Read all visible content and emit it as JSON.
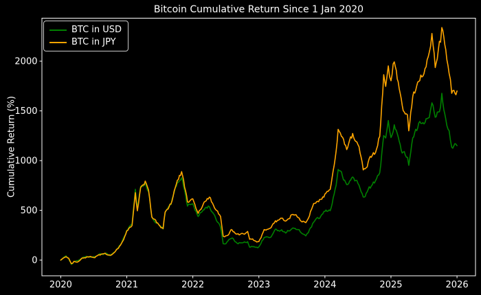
{
  "title": "Bitcoin Cumulative Return Since 1 Jan 2020",
  "colors": {
    "background": "#000000",
    "text": "#ffffff",
    "spine": "#ffffff",
    "usd_line": "#008000",
    "jpy_line": "#ffa500"
  },
  "legend": {
    "items": [
      {
        "label": "BTC in USD",
        "color": "#008000"
      },
      {
        "label": "BTC in JPY",
        "color": "#ffa500"
      }
    ]
  },
  "chart_data": {
    "type": "line",
    "title": "Bitcoin Cumulative Return Since 1 Jan 2020",
    "xlabel": "",
    "ylabel": "Cumulative Return (%)",
    "grid": false,
    "legend_position": "upper left",
    "x_unit": "decimal_year",
    "xlim": [
      2019.715,
      2026.28
    ],
    "ylim": [
      -158,
      2432
    ],
    "xticks": [
      2020,
      2021,
      2022,
      2023,
      2024,
      2025,
      2026
    ],
    "xticklabels": [
      "2020",
      "2021",
      "2022",
      "2023",
      "2024",
      "2025",
      "2026"
    ],
    "yticks": [
      0,
      500,
      1000,
      1500,
      2000
    ],
    "yticklabels": [
      "0",
      "500",
      "1000",
      "1500",
      "2000"
    ],
    "x": [
      2020.0,
      2020.04,
      2020.08,
      2020.12,
      2020.16,
      2020.2,
      2020.25,
      2020.33,
      2020.42,
      2020.5,
      2020.58,
      2020.67,
      2020.75,
      2020.83,
      2020.92,
      2021.0,
      2021.08,
      2021.13,
      2021.16,
      2021.21,
      2021.28,
      2021.33,
      2021.38,
      2021.42,
      2021.5,
      2021.55,
      2021.58,
      2021.67,
      2021.75,
      2021.83,
      2021.92,
      2022.0,
      2022.08,
      2022.17,
      2022.25,
      2022.33,
      2022.42,
      2022.46,
      2022.5,
      2022.58,
      2022.67,
      2022.75,
      2022.83,
      2022.86,
      2022.92,
      2023.0,
      2023.08,
      2023.17,
      2023.25,
      2023.33,
      2023.42,
      2023.5,
      2023.58,
      2023.67,
      2023.71,
      2023.75,
      2023.83,
      2023.92,
      2024.0,
      2024.08,
      2024.17,
      2024.2,
      2024.25,
      2024.33,
      2024.42,
      2024.5,
      2024.58,
      2024.67,
      2024.75,
      2024.83,
      2024.89,
      2024.92,
      2024.96,
      2025.0,
      2025.05,
      2025.08,
      2025.17,
      2025.25,
      2025.27,
      2025.33,
      2025.42,
      2025.5,
      2025.58,
      2025.62,
      2025.67,
      2025.75,
      2025.77,
      2025.83,
      2025.88,
      2025.92,
      2026.0
    ],
    "series": [
      {
        "name": "BTC in USD",
        "color": "#008000",
        "values": [
          0,
          25,
          33,
          20,
          -42,
          -15,
          -8,
          22,
          32,
          26,
          57,
          63,
          50,
          92,
          170,
          300,
          360,
          695,
          520,
          715,
          783,
          690,
          420,
          395,
          340,
          314,
          470,
          565,
          748,
          845,
          553,
          563,
          435,
          517,
          543,
          435,
          342,
          170,
          168,
          224,
          179,
          170,
          185,
          121,
          139,
          131,
          229,
          227,
          296,
          306,
          278,
          324,
          306,
          261,
          250,
          275,
          381,
          424,
          488,
          498,
          751,
          923,
          867,
          742,
          838,
          773,
          630,
          719,
          780,
          865,
          1276,
          1240,
          1375,
          1212,
          1380,
          1318,
          1073,
          1047,
          960,
          1209,
          1354,
          1401,
          1471,
          1624,
          1404,
          1550,
          1654,
          1429,
          1300,
          1151,
          1150
        ]
      },
      {
        "name": "BTC in JPY",
        "color": "#ffa500",
        "values": [
          0,
          26,
          34,
          18,
          -44,
          -18,
          -12,
          20,
          31,
          25,
          53,
          60,
          46,
          85,
          160,
          286,
          349,
          680,
          505,
          715,
          784,
          700,
          428,
          400,
          345,
          320,
          475,
          575,
          768,
          880,
          591,
          602,
          465,
          570,
          625,
          539,
          423,
          230,
          235,
          297,
          256,
          259,
          288,
          197,
          200,
          178,
          294,
          309,
          384,
          413,
          384,
          463,
          431,
          383,
          370,
          416,
          571,
          609,
          662,
          708,
          1074,
          1293,
          1246,
          1122,
          1257,
          1197,
          900,
          1001,
          1062,
          1250,
          1858,
          1744,
          1982,
          1797,
          2009,
          1924,
          1514,
          1479,
          1327,
          1650,
          1808,
          1888,
          2076,
          2243,
          1933,
          2200,
          2325,
          2066,
          1900,
          1695,
          1700
        ]
      }
    ]
  }
}
